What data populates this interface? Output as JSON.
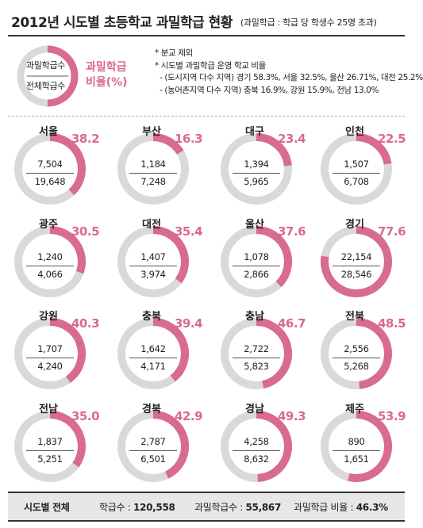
{
  "header": {
    "title": "2012년 시도별 초등학교 과밀학급 현황",
    "subtitle": "(과밀학급 : 학급 당 학생수 25명 초과)"
  },
  "legend": {
    "numerator_label": "과밀학급수",
    "denominator_label": "전체학급수",
    "ratio_label_line1": "과밀학급",
    "ratio_label_line2": "비율(%)"
  },
  "notes": [
    "* 분교 제외",
    "* 시도별 과밀학급 운영 학교 비율",
    "- (도시지역 다수 지역) 경기 58.3%, 서울 32.5%, 울산 26.71%, 대전 25.2%",
    "- (농어촌지역 다수 지역) 충북 16.9%, 강원 15.9%, 전남 13.0%"
  ],
  "colors": {
    "accent": "#d96a92",
    "ring": "#d9d9d9"
  },
  "chart_data": {
    "type": "pie",
    "series_fields": [
      "과밀학급수",
      "전체학급수",
      "과밀학급 비율(%)"
    ],
    "regions": [
      {
        "name": "서울",
        "overcrowded": "7,504",
        "total": "19,648",
        "ratio": "38.2",
        "pct": 38.2
      },
      {
        "name": "부산",
        "overcrowded": "1,184",
        "total": "7,248",
        "ratio": "16.3",
        "pct": 16.3
      },
      {
        "name": "대구",
        "overcrowded": "1,394",
        "total": "5,965",
        "ratio": "23.4",
        "pct": 23.4
      },
      {
        "name": "인천",
        "overcrowded": "1,507",
        "total": "6,708",
        "ratio": "22.5",
        "pct": 22.5
      },
      {
        "name": "광주",
        "overcrowded": "1,240",
        "total": "4,066",
        "ratio": "30.5",
        "pct": 30.5
      },
      {
        "name": "대전",
        "overcrowded": "1,407",
        "total": "3,974",
        "ratio": "35.4",
        "pct": 35.4
      },
      {
        "name": "울산",
        "overcrowded": "1,078",
        "total": "2,866",
        "ratio": "37.6",
        "pct": 37.6
      },
      {
        "name": "경기",
        "overcrowded": "22,154",
        "total": "28,546",
        "ratio": "77.6",
        "pct": 77.6
      },
      {
        "name": "강원",
        "overcrowded": "1,707",
        "total": "4,240",
        "ratio": "40.3",
        "pct": 40.3
      },
      {
        "name": "충북",
        "overcrowded": "1,642",
        "total": "4,171",
        "ratio": "39.4",
        "pct": 39.4
      },
      {
        "name": "충남",
        "overcrowded": "2,722",
        "total": "5,823",
        "ratio": "46.7",
        "pct": 46.7
      },
      {
        "name": "전북",
        "overcrowded": "2,556",
        "total": "5,268",
        "ratio": "48.5",
        "pct": 48.5
      },
      {
        "name": "전남",
        "overcrowded": "1,837",
        "total": "5,251",
        "ratio": "35.0",
        "pct": 35.0
      },
      {
        "name": "경북",
        "overcrowded": "2,787",
        "total": "6,501",
        "ratio": "42.9",
        "pct": 42.9
      },
      {
        "name": "경남",
        "overcrowded": "4,258",
        "total": "8,632",
        "ratio": "49.3",
        "pct": 49.3
      },
      {
        "name": "제주",
        "overcrowded": "890",
        "total": "1,651",
        "ratio": "53.9",
        "pct": 53.9
      }
    ]
  },
  "footer": {
    "label": "시도별 전체",
    "classes_label": "학급수 :",
    "classes_value": "120,558",
    "overcrowded_label": "과밀학급수 :",
    "overcrowded_value": "55,867",
    "ratio_label": "과밀학급 비율 :",
    "ratio_value": "46.3%"
  }
}
